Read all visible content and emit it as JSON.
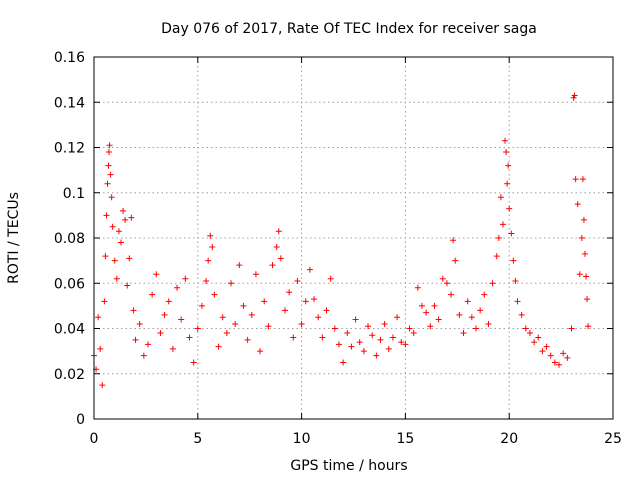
{
  "chart_data": {
    "type": "scatter",
    "title": "Day 076 of 2017, Rate Of TEC Index for receiver saga",
    "xlabel": "GPS time / hours",
    "ylabel": "ROTI / TECUs",
    "xlim": [
      0,
      25
    ],
    "ylim": [
      0,
      0.16
    ],
    "xticks": [
      0,
      5,
      10,
      15,
      20,
      25
    ],
    "xtick_labels": [
      "0",
      "5",
      "10",
      "15",
      "20",
      "25"
    ],
    "yticks": [
      0,
      0.02,
      0.04,
      0.06,
      0.08,
      0.1,
      0.12,
      0.14,
      0.16
    ],
    "ytick_labels": [
      "0",
      "0.02",
      "0.04",
      "0.06",
      "0.08",
      "0.1",
      "0.12",
      "0.14",
      "0.16"
    ],
    "grid": true,
    "marker": "+",
    "color": "#ff0000",
    "series": [
      {
        "name": "ROTI",
        "points": [
          [
            0.0,
            0.028
          ],
          [
            0.1,
            0.022
          ],
          [
            0.2,
            0.045
          ],
          [
            0.3,
            0.031
          ],
          [
            0.4,
            0.015
          ],
          [
            0.5,
            0.052
          ],
          [
            0.55,
            0.072
          ],
          [
            0.6,
            0.09
          ],
          [
            0.65,
            0.104
          ],
          [
            0.7,
            0.112
          ],
          [
            0.72,
            0.118
          ],
          [
            0.75,
            0.121
          ],
          [
            0.8,
            0.108
          ],
          [
            0.85,
            0.098
          ],
          [
            0.9,
            0.085
          ],
          [
            1.0,
            0.07
          ],
          [
            1.1,
            0.062
          ],
          [
            1.2,
            0.083
          ],
          [
            1.3,
            0.078
          ],
          [
            1.4,
            0.092
          ],
          [
            1.5,
            0.088
          ],
          [
            1.6,
            0.059
          ],
          [
            1.7,
            0.071
          ],
          [
            1.8,
            0.089
          ],
          [
            1.9,
            0.048
          ],
          [
            2.0,
            0.035
          ],
          [
            2.2,
            0.042
          ],
          [
            2.4,
            0.028
          ],
          [
            2.6,
            0.033
          ],
          [
            2.8,
            0.055
          ],
          [
            3.0,
            0.064
          ],
          [
            3.2,
            0.038
          ],
          [
            3.4,
            0.046
          ],
          [
            3.6,
            0.052
          ],
          [
            3.8,
            0.031
          ],
          [
            4.0,
            0.058
          ],
          [
            4.2,
            0.044
          ],
          [
            4.4,
            0.062
          ],
          [
            4.6,
            0.036
          ],
          [
            4.8,
            0.025
          ],
          [
            5.0,
            0.04
          ],
          [
            5.2,
            0.05
          ],
          [
            5.4,
            0.061
          ],
          [
            5.5,
            0.07
          ],
          [
            5.6,
            0.081
          ],
          [
            5.7,
            0.076
          ],
          [
            5.8,
            0.055
          ],
          [
            6.0,
            0.032
          ],
          [
            6.2,
            0.045
          ],
          [
            6.4,
            0.038
          ],
          [
            6.6,
            0.06
          ],
          [
            6.8,
            0.042
          ],
          [
            7.0,
            0.068
          ],
          [
            7.2,
            0.05
          ],
          [
            7.4,
            0.035
          ],
          [
            7.6,
            0.046
          ],
          [
            7.8,
            0.064
          ],
          [
            8.0,
            0.03
          ],
          [
            8.2,
            0.052
          ],
          [
            8.4,
            0.041
          ],
          [
            8.6,
            0.068
          ],
          [
            8.8,
            0.076
          ],
          [
            8.9,
            0.083
          ],
          [
            9.0,
            0.071
          ],
          [
            9.2,
            0.048
          ],
          [
            9.4,
            0.056
          ],
          [
            9.6,
            0.036
          ],
          [
            9.8,
            0.061
          ],
          [
            10.0,
            0.042
          ],
          [
            10.2,
            0.052
          ],
          [
            10.4,
            0.066
          ],
          [
            10.6,
            0.053
          ],
          [
            10.8,
            0.045
          ],
          [
            11.0,
            0.036
          ],
          [
            11.2,
            0.048
          ],
          [
            11.4,
            0.062
          ],
          [
            11.6,
            0.04
          ],
          [
            11.8,
            0.033
          ],
          [
            12.0,
            0.025
          ],
          [
            12.2,
            0.038
          ],
          [
            12.4,
            0.032
          ],
          [
            12.6,
            0.044
          ],
          [
            12.8,
            0.034
          ],
          [
            13.0,
            0.03
          ],
          [
            13.2,
            0.041
          ],
          [
            13.4,
            0.037
          ],
          [
            13.6,
            0.028
          ],
          [
            13.8,
            0.035
          ],
          [
            14.0,
            0.042
          ],
          [
            14.2,
            0.031
          ],
          [
            14.4,
            0.036
          ],
          [
            14.6,
            0.045
          ],
          [
            14.8,
            0.034
          ],
          [
            15.0,
            0.033
          ],
          [
            15.2,
            0.04
          ],
          [
            15.4,
            0.038
          ],
          [
            15.6,
            0.058
          ],
          [
            15.8,
            0.05
          ],
          [
            16.0,
            0.047
          ],
          [
            16.2,
            0.041
          ],
          [
            16.4,
            0.05
          ],
          [
            16.6,
            0.044
          ],
          [
            16.8,
            0.062
          ],
          [
            17.0,
            0.06
          ],
          [
            17.2,
            0.055
          ],
          [
            17.3,
            0.079
          ],
          [
            17.4,
            0.07
          ],
          [
            17.6,
            0.046
          ],
          [
            17.8,
            0.038
          ],
          [
            18.0,
            0.052
          ],
          [
            18.2,
            0.045
          ],
          [
            18.4,
            0.04
          ],
          [
            18.6,
            0.048
          ],
          [
            18.8,
            0.055
          ],
          [
            19.0,
            0.042
          ],
          [
            19.2,
            0.06
          ],
          [
            19.4,
            0.072
          ],
          [
            19.5,
            0.08
          ],
          [
            19.6,
            0.098
          ],
          [
            19.7,
            0.086
          ],
          [
            19.8,
            0.123
          ],
          [
            19.85,
            0.118
          ],
          [
            19.9,
            0.104
          ],
          [
            19.95,
            0.112
          ],
          [
            20.0,
            0.093
          ],
          [
            20.1,
            0.082
          ],
          [
            20.2,
            0.07
          ],
          [
            20.3,
            0.061
          ],
          [
            20.4,
            0.052
          ],
          [
            20.6,
            0.046
          ],
          [
            20.8,
            0.04
          ],
          [
            21.0,
            0.038
          ],
          [
            21.2,
            0.034
          ],
          [
            21.4,
            0.036
          ],
          [
            21.6,
            0.03
          ],
          [
            21.8,
            0.032
          ],
          [
            22.0,
            0.028
          ],
          [
            22.2,
            0.025
          ],
          [
            22.4,
            0.024
          ],
          [
            22.6,
            0.029
          ],
          [
            22.8,
            0.027
          ],
          [
            23.0,
            0.04
          ],
          [
            23.1,
            0.142
          ],
          [
            23.15,
            0.143
          ],
          [
            23.2,
            0.106
          ],
          [
            23.3,
            0.095
          ],
          [
            23.4,
            0.064
          ],
          [
            23.5,
            0.08
          ],
          [
            23.55,
            0.106
          ],
          [
            23.6,
            0.088
          ],
          [
            23.65,
            0.073
          ],
          [
            23.7,
            0.063
          ],
          [
            23.75,
            0.053
          ],
          [
            23.8,
            0.041
          ]
        ]
      }
    ]
  }
}
